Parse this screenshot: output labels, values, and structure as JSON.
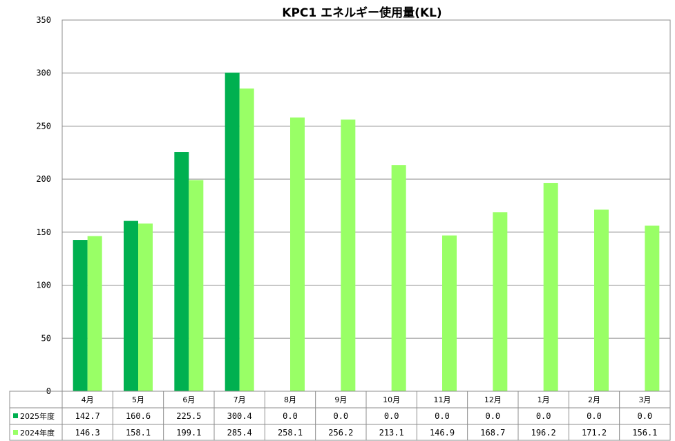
{
  "chart_data": {
    "type": "bar",
    "title": "KPC1 エネルギー使用量(KL)",
    "categories": [
      "4月",
      "5月",
      "6月",
      "7月",
      "8月",
      "9月",
      "10月",
      "11月",
      "12月",
      "1月",
      "2月",
      "3月"
    ],
    "series": [
      {
        "name": "2025年度",
        "color": "#00b050",
        "values": [
          142.7,
          160.6,
          225.5,
          300.4,
          0.0,
          0.0,
          0.0,
          0.0,
          0.0,
          0.0,
          0.0,
          0.0
        ],
        "labels": [
          "142.7",
          "160.6",
          "225.5",
          "300.4",
          "0.0",
          "0.0",
          "0.0",
          "0.0",
          "0.0",
          "0.0",
          "0.0",
          "0.0"
        ]
      },
      {
        "name": "2024年度",
        "color": "#99ff66",
        "values": [
          146.3,
          158.1,
          199.1,
          285.4,
          258.1,
          256.2,
          213.1,
          146.9,
          168.7,
          196.2,
          171.2,
          156.1
        ],
        "labels": [
          "146.3",
          "158.1",
          "199.1",
          "285.4",
          "258.1",
          "256.2",
          "213.1",
          "146.9",
          "168.7",
          "196.2",
          "171.2",
          "156.1"
        ]
      }
    ],
    "ylim": [
      0,
      350
    ],
    "yticks": [
      "0",
      "50",
      "100",
      "150",
      "200",
      "250",
      "300",
      "350"
    ],
    "grid": true,
    "legend": "data-table"
  }
}
